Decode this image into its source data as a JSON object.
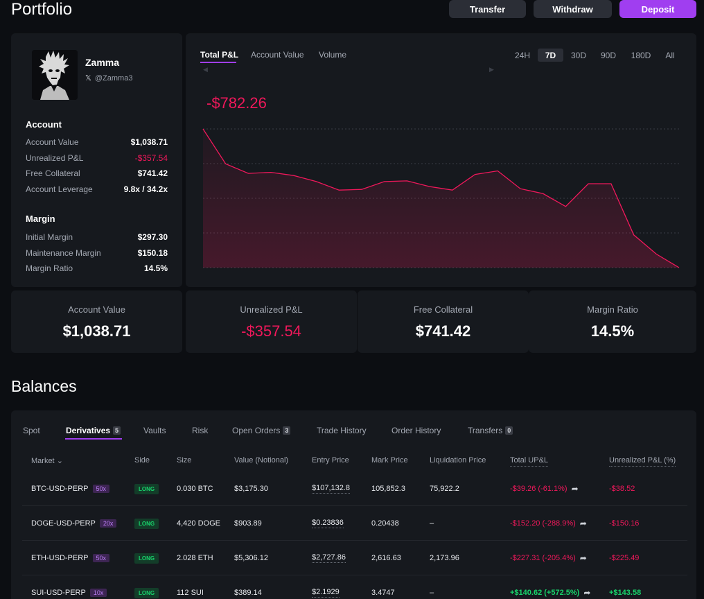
{
  "header": {
    "title": "Portfolio",
    "transfer_label": "Transfer",
    "withdraw_label": "Withdraw",
    "deposit_label": "Deposit",
    "deposit_color": "#a03ef0"
  },
  "profile": {
    "name": "Zamma",
    "handle": "@Zamma3",
    "x_icon": "𝕏",
    "account_section": "Account",
    "account": [
      {
        "label": "Account Value",
        "value": "$1,038.71"
      },
      {
        "label": "Unrealized P&L",
        "value": "-$357.54"
      },
      {
        "label": "Free Collateral",
        "value": "$741.42"
      },
      {
        "label": "Account Leverage",
        "value": "9.8x / 34.2x"
      }
    ],
    "margin_section": "Margin",
    "margin": [
      {
        "label": "Initial Margin",
        "value": "$297.30"
      },
      {
        "label": "Maintenance Margin",
        "value": "$150.18"
      },
      {
        "label": "Margin Ratio",
        "value": "14.5%"
      }
    ]
  },
  "chart_panel": {
    "tabs": [
      "Total P&L",
      "Account Value",
      "Volume"
    ],
    "active_tab": "Total P&L",
    "ranges": [
      "24H",
      "7D",
      "30D",
      "90D",
      "180D",
      "All"
    ],
    "active_range": "7D",
    "pnl_value": "-$782.26",
    "line_color": "#f0185b"
  },
  "chart_data": {
    "type": "area",
    "title": "",
    "xlabel": "",
    "ylabel": "",
    "grid": true,
    "series": [
      {
        "values": [
          0,
          -98,
          -125,
          -122,
          -131,
          -148,
          -172,
          -170,
          -148,
          -146,
          -162,
          -172,
          -128,
          -118,
          -168,
          -182,
          -218,
          -154,
          -154,
          -298,
          -352,
          -390
        ]
      }
    ]
  },
  "stats": [
    {
      "label": "Account Value",
      "value": "$1,038.71"
    },
    {
      "label": "Unrealized P&L",
      "value": "-$357.54"
    },
    {
      "label": "Free Collateral",
      "value": "$741.42"
    },
    {
      "label": "Margin Ratio",
      "value": "14.5%"
    }
  ],
  "balances": {
    "title": "Balances",
    "tabs": [
      {
        "label": "Spot",
        "badge": ""
      },
      {
        "label": "Derivatives",
        "badge": "5"
      },
      {
        "label": "Vaults",
        "badge": ""
      },
      {
        "label": "Risk",
        "badge": ""
      },
      {
        "label": "Open Orders",
        "badge": "3"
      },
      {
        "label": "Trade History",
        "badge": ""
      },
      {
        "label": "Order History",
        "badge": ""
      },
      {
        "label": "Transfers",
        "badge": "0"
      }
    ],
    "columns": [
      "Market",
      "Side",
      "Size",
      "Value (Notional)",
      "Entry Price",
      "Mark Price",
      "Liquidation Price",
      "Total UP&L",
      "Unrealized P&L (%)"
    ],
    "market_chevron": "⌄",
    "rows": [
      {
        "market": "BTC-USD-PERP",
        "leverage": "50x",
        "side": "LONG",
        "size": "0.030 BTC",
        "value": "$3,175.30",
        "entry": "$107,132.8",
        "mark": "105,852.3",
        "liq": "75,922.2",
        "total_upl": "-$39.26",
        "total_upl_pct": "(-61.1%)",
        "upl": "-$38.52",
        "negative": true
      },
      {
        "market": "DOGE-USD-PERP",
        "leverage": "20x",
        "side": "LONG",
        "size": "4,420 DOGE",
        "value": "$903.89",
        "entry": "$0.23836",
        "mark": "0.20438",
        "liq": "–",
        "total_upl": "-$152.20",
        "total_upl_pct": "(-288.9%)",
        "upl": "-$150.16",
        "negative": true
      },
      {
        "market": "ETH-USD-PERP",
        "leverage": "50x",
        "side": "LONG",
        "size": "2.028 ETH",
        "value": "$5,306.12",
        "entry": "$2,727.86",
        "mark": "2,616.63",
        "liq": "2,173.96",
        "total_upl": "-$227.31",
        "total_upl_pct": "(-205.4%)",
        "upl": "-$225.49",
        "negative": true
      },
      {
        "market": "SUI-USD-PERP",
        "leverage": "10x",
        "side": "LONG",
        "size": "112 SUI",
        "value": "$389.14",
        "entry": "$2.1929",
        "mark": "3.4747",
        "liq": "–",
        "total_upl": "+$140.62",
        "total_upl_pct": "(+572.5%)",
        "upl": "+$143.58",
        "negative": false
      }
    ]
  }
}
